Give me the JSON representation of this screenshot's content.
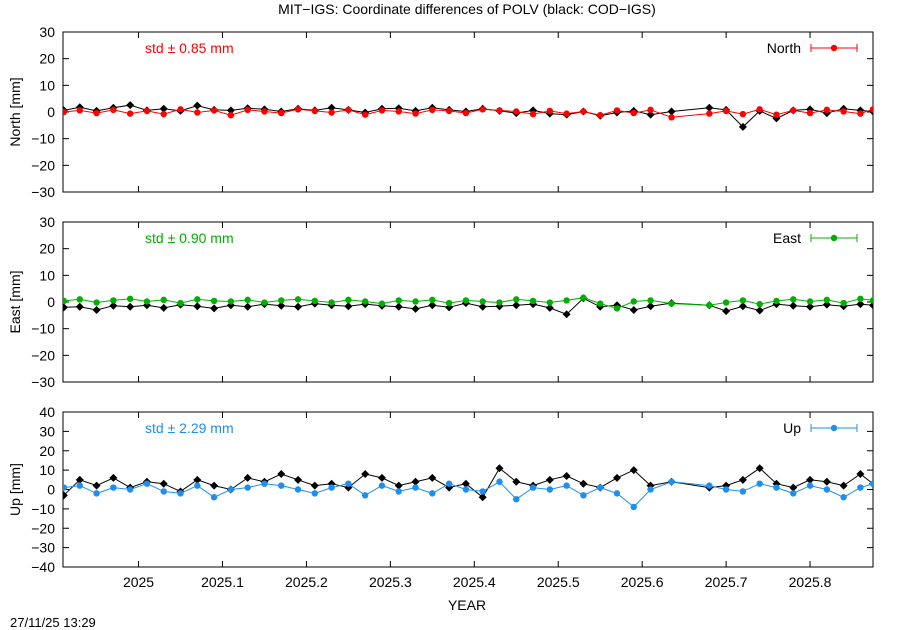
{
  "figure": {
    "title": "MIT−IGS: Coordinate differences of POLV (black: COD−IGS)",
    "xlabel": "YEAR",
    "timestamp": "27/11/25 13:29"
  },
  "chart_data": [
    {
      "type": "line",
      "panel": "North",
      "ylabel": "North [mm]",
      "xlabel": "YEAR",
      "xlim": [
        2024.91,
        2025.875
      ],
      "ylim": [
        -30,
        30
      ],
      "yticks": [
        "30",
        "20",
        "10",
        "0",
        "−10",
        "−20",
        "−30"
      ],
      "xticks": [
        "2025",
        "2025.1",
        "2025.2",
        "2025.3",
        "2025.4",
        "2025.5",
        "2025.6",
        "2025.7",
        "2025.8"
      ],
      "std_label": "std ± 0.85 mm",
      "legend": {
        "label": "North",
        "position": "top-right"
      },
      "colors": {
        "primary": "#ff0000",
        "reference": "#000000"
      },
      "series": [
        {
          "name": "North",
          "color": "#ff0000",
          "x": [
            2024.911,
            2024.93,
            2024.95,
            2024.97,
            2024.99,
            2025.01,
            2025.03,
            2025.05,
            2025.07,
            2025.09,
            2025.11,
            2025.13,
            2025.15,
            2025.17,
            2025.19,
            2025.21,
            2025.23,
            2025.25,
            2025.27,
            2025.29,
            2025.31,
            2025.33,
            2025.35,
            2025.37,
            2025.39,
            2025.41,
            2025.43,
            2025.45,
            2025.47,
            2025.49,
            2025.51,
            2025.53,
            2025.55,
            2025.57,
            2025.59,
            2025.61,
            2025.635,
            2025.68,
            2025.7,
            2025.72,
            2025.74,
            2025.76,
            2025.78,
            2025.8,
            2025.82,
            2025.84,
            2025.86,
            2025.875
          ],
          "y": [
            0,
            0.6,
            -0.4,
            0.8,
            -0.6,
            0.4,
            -0.8,
            1,
            -0.2,
            0.6,
            -1.2,
            0.8,
            0.2,
            -0.4,
            1,
            0.4,
            -0.2,
            0.8,
            -1,
            0.6,
            0.2,
            -0.6,
            0.8,
            0.4,
            -0.4,
            1,
            0.6,
            0.2,
            -0.8,
            0.4,
            -0.6,
            0.2,
            -1.2,
            0.6,
            -0.4,
            0.8,
            -2,
            -0.6,
            0.4,
            -0.8,
            1,
            -1,
            0.6,
            -0.4,
            0.8,
            0.2,
            -0.6,
            1
          ]
        },
        {
          "name": "COD−IGS",
          "color": "#000000",
          "x": [
            2024.911,
            2024.93,
            2024.95,
            2024.97,
            2024.99,
            2025.01,
            2025.03,
            2025.05,
            2025.07,
            2025.09,
            2025.11,
            2025.13,
            2025.15,
            2025.17,
            2025.19,
            2025.21,
            2025.23,
            2025.25,
            2025.27,
            2025.29,
            2025.31,
            2025.33,
            2025.35,
            2025.37,
            2025.39,
            2025.41,
            2025.43,
            2025.45,
            2025.47,
            2025.49,
            2025.51,
            2025.53,
            2025.55,
            2025.57,
            2025.59,
            2025.61,
            2025.635,
            2025.68,
            2025.7,
            2025.72,
            2025.74,
            2025.76,
            2025.78,
            2025.8,
            2025.82,
            2025.84,
            2025.86,
            2025.875
          ],
          "y": [
            0.6,
            1.8,
            0.4,
            1.6,
            2.6,
            0.6,
            1.2,
            0.4,
            2.4,
            0.8,
            0.6,
            1.4,
            1,
            0.2,
            1.2,
            0.6,
            1.6,
            0.8,
            -0.2,
            1.2,
            1.4,
            0.4,
            1.6,
            0.8,
            0.2,
            1.2,
            0.4,
            -0.4,
            0.6,
            -0.6,
            -1,
            0.2,
            -1.4,
            -0.2,
            0.4,
            -1,
            0.2,
            1.6,
            0.8,
            -5.6,
            0.4,
            -2.4,
            0.6,
            1,
            -0.4,
            1.2,
            0.6,
            0.2
          ]
        }
      ]
    },
    {
      "type": "line",
      "panel": "East",
      "ylabel": "East [mm]",
      "xlabel": "YEAR",
      "xlim": [
        2024.91,
        2025.875
      ],
      "ylim": [
        -30,
        30
      ],
      "yticks": [
        "30",
        "20",
        "10",
        "0",
        "−10",
        "−20",
        "−30"
      ],
      "xticks": [
        "2025",
        "2025.1",
        "2025.2",
        "2025.3",
        "2025.4",
        "2025.5",
        "2025.6",
        "2025.7",
        "2025.8"
      ],
      "std_label": "std ± 0.90 mm",
      "legend": {
        "label": "East",
        "position": "top-right"
      },
      "colors": {
        "primary": "#00b000",
        "reference": "#000000"
      },
      "series": [
        {
          "name": "East",
          "color": "#00b000",
          "x": [
            2024.911,
            2024.93,
            2024.95,
            2024.97,
            2024.99,
            2025.01,
            2025.03,
            2025.05,
            2025.07,
            2025.09,
            2025.11,
            2025.13,
            2025.15,
            2025.17,
            2025.19,
            2025.21,
            2025.23,
            2025.25,
            2025.27,
            2025.29,
            2025.31,
            2025.33,
            2025.35,
            2025.37,
            2025.39,
            2025.41,
            2025.43,
            2025.45,
            2025.47,
            2025.49,
            2025.51,
            2025.53,
            2025.55,
            2025.57,
            2025.59,
            2025.61,
            2025.635,
            2025.68,
            2025.7,
            2025.72,
            2025.74,
            2025.76,
            2025.78,
            2025.8,
            2025.82,
            2025.84,
            2025.86,
            2025.875
          ],
          "y": [
            0.4,
            1,
            -0.2,
            0.6,
            1.2,
            0.2,
            0.8,
            -0.4,
            1,
            0.4,
            0.2,
            0.8,
            -0.2,
            0.6,
            1,
            0.4,
            -0.2,
            0.8,
            0.2,
            -0.6,
            0.6,
            0.2,
            0.8,
            -0.4,
            0.6,
            0.2,
            -0.2,
            1,
            0.4,
            -0.2,
            0.6,
            1.6,
            -0.6,
            -2.4,
            0.2,
            0.6,
            -0.6,
            -1.2,
            -0.2,
            0.6,
            -0.8,
            0.4,
            1,
            0.2,
            0.8,
            -0.4,
            1.2,
            0.6
          ]
        },
        {
          "name": "COD−IGS",
          "color": "#000000",
          "x": [
            2024.911,
            2024.93,
            2024.95,
            2024.97,
            2024.99,
            2025.01,
            2025.03,
            2025.05,
            2025.07,
            2025.09,
            2025.11,
            2025.13,
            2025.15,
            2025.17,
            2025.19,
            2025.21,
            2025.23,
            2025.25,
            2025.27,
            2025.29,
            2025.31,
            2025.33,
            2025.35,
            2025.37,
            2025.39,
            2025.41,
            2025.43,
            2025.45,
            2025.47,
            2025.49,
            2025.51,
            2025.53,
            2025.55,
            2025.57,
            2025.59,
            2025.61,
            2025.635,
            2025.68,
            2025.7,
            2025.72,
            2025.74,
            2025.76,
            2025.78,
            2025.8,
            2025.82,
            2025.84,
            2025.86,
            2025.875
          ],
          "y": [
            -2,
            -1.8,
            -3,
            -1.4,
            -1.8,
            -1.2,
            -2.2,
            -1,
            -1.6,
            -2.4,
            -1.2,
            -1.8,
            -0.8,
            -1.4,
            -1.8,
            -0.6,
            -1.2,
            -1.6,
            -0.8,
            -1.4,
            -1.8,
            -2.6,
            -1.2,
            -2,
            -0.4,
            -1.8,
            -1.6,
            -1.2,
            -0.8,
            -2.2,
            -4.6,
            1.4,
            -1.8,
            -1.2,
            -3,
            -1.6,
            -0.4,
            -1.2,
            -3.4,
            -1.6,
            -3.2,
            -0.8,
            -1.4,
            -1.8,
            -1,
            -1.6,
            -0.8,
            -1.2
          ]
        }
      ]
    },
    {
      "type": "line",
      "panel": "Up",
      "ylabel": "Up [mm]",
      "xlabel": "YEAR",
      "xlim": [
        2024.91,
        2025.875
      ],
      "ylim": [
        -40,
        40
      ],
      "yticks": [
        "40",
        "30",
        "20",
        "10",
        "0",
        "−10",
        "−20",
        "−30",
        "−40"
      ],
      "xticks": [
        "2025",
        "2025.1",
        "2025.2",
        "2025.3",
        "2025.4",
        "2025.5",
        "2025.6",
        "2025.7",
        "2025.8"
      ],
      "std_label": "std ± 2.29 mm",
      "legend": {
        "label": "Up",
        "position": "top-right"
      },
      "colors": {
        "primary": "#1e8fef",
        "reference": "#000000"
      },
      "series": [
        {
          "name": "Up",
          "color": "#1e8fef",
          "x": [
            2024.911,
            2024.93,
            2024.95,
            2024.97,
            2024.99,
            2025.01,
            2025.03,
            2025.05,
            2025.07,
            2025.09,
            2025.11,
            2025.13,
            2025.15,
            2025.17,
            2025.19,
            2025.21,
            2025.23,
            2025.25,
            2025.27,
            2025.29,
            2025.31,
            2025.33,
            2025.35,
            2025.37,
            2025.39,
            2025.41,
            2025.43,
            2025.45,
            2025.47,
            2025.49,
            2025.51,
            2025.53,
            2025.55,
            2025.57,
            2025.59,
            2025.61,
            2025.635,
            2025.68,
            2025.7,
            2025.72,
            2025.74,
            2025.76,
            2025.78,
            2025.8,
            2025.82,
            2025.84,
            2025.86,
            2025.875
          ],
          "y": [
            1,
            2,
            -2,
            1,
            0,
            3,
            -1,
            -2,
            2,
            -4,
            0,
            1,
            3,
            2,
            0,
            -2,
            1,
            3,
            -3,
            2,
            -1,
            1,
            -2,
            3,
            0,
            -1,
            4,
            -5,
            1,
            0,
            2,
            -3,
            1,
            -2,
            -9,
            0,
            4,
            2,
            0,
            -1,
            3,
            1,
            -2,
            2,
            0,
            -4,
            1,
            3
          ]
        },
        {
          "name": "COD−IGS",
          "color": "#000000",
          "x": [
            2024.911,
            2024.93,
            2024.95,
            2024.97,
            2024.99,
            2025.01,
            2025.03,
            2025.05,
            2025.07,
            2025.09,
            2025.11,
            2025.13,
            2025.15,
            2025.17,
            2025.19,
            2025.21,
            2025.23,
            2025.25,
            2025.27,
            2025.29,
            2025.31,
            2025.33,
            2025.35,
            2025.37,
            2025.39,
            2025.41,
            2025.43,
            2025.45,
            2025.47,
            2025.49,
            2025.51,
            2025.53,
            2025.55,
            2025.57,
            2025.59,
            2025.61,
            2025.635,
            2025.68,
            2025.7,
            2025.72,
            2025.74,
            2025.76,
            2025.78,
            2025.8,
            2025.82,
            2025.84,
            2025.86,
            2025.875
          ],
          "y": [
            -3,
            5,
            2,
            6,
            1,
            4,
            3,
            -1,
            5,
            2,
            0,
            6,
            4,
            8,
            5,
            2,
            3,
            1,
            8,
            6,
            2,
            4,
            6,
            1,
            3,
            -4,
            11,
            4,
            2,
            5,
            7,
            3,
            1,
            6,
            10,
            2,
            4,
            1,
            2,
            5,
            11,
            3,
            1,
            5,
            4,
            2,
            8,
            3
          ]
        }
      ]
    }
  ]
}
